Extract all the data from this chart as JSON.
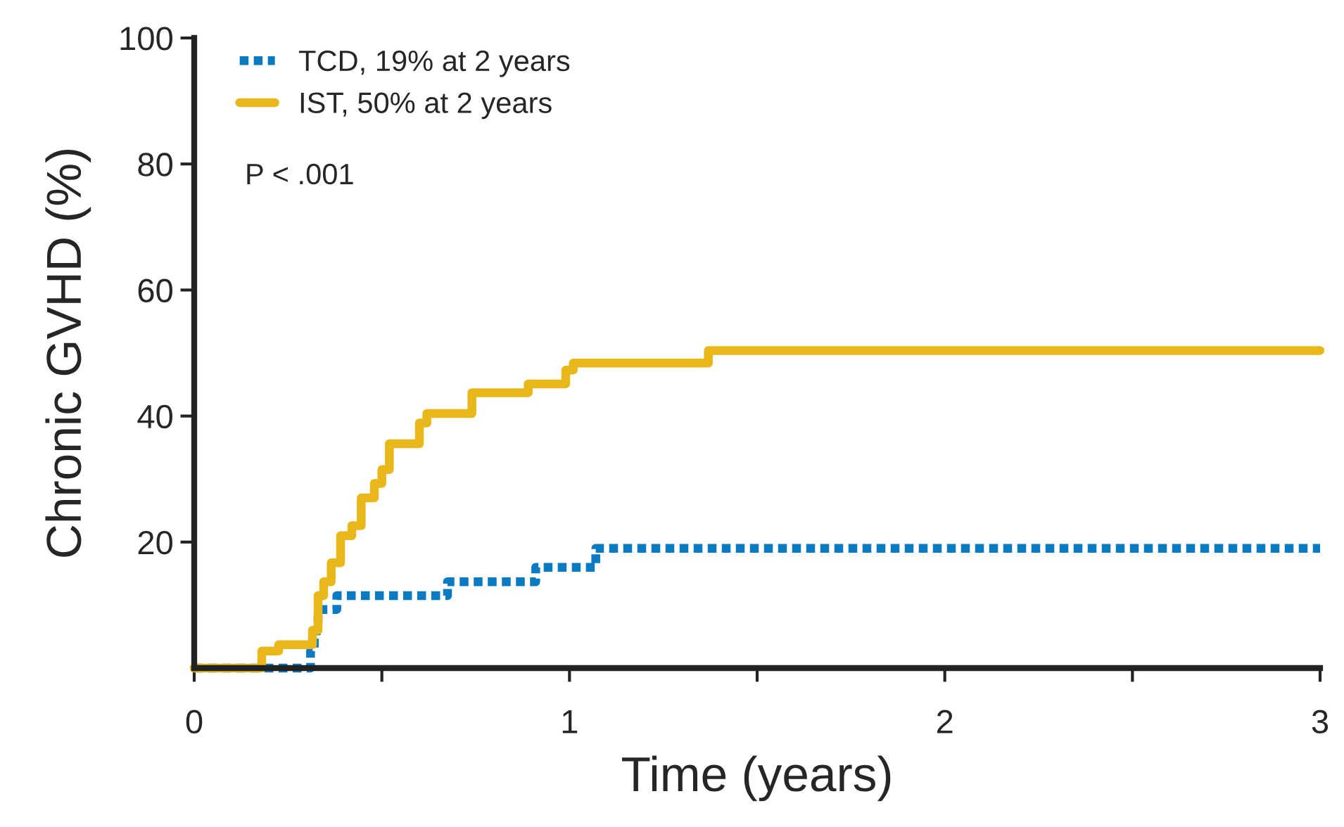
{
  "chart_data": {
    "type": "step",
    "xlabel": "Time (years)",
    "ylabel": "Chronic GVHD (%)",
    "series": [
      {
        "name": "TCD, 19% at 2 years",
        "color": "#0a7bc2",
        "line_style": "dotted",
        "x": [
          0,
          0.31,
          0.32,
          0.325,
          0.33,
          0.38,
          0.675,
          0.91,
          1.07,
          3
        ],
        "values": [
          0,
          2.7,
          4.9,
          7.1,
          9.3,
          11.5,
          13.7,
          16,
          19,
          19
        ]
      },
      {
        "name": "IST, 50% at 2 years",
        "color": "#e8b81a",
        "line_style": "solid",
        "x": [
          0,
          0.18,
          0.225,
          0.315,
          0.33,
          0.345,
          0.365,
          0.39,
          0.42,
          0.445,
          0.48,
          0.5,
          0.52,
          0.6,
          0.62,
          0.74,
          0.89,
          0.99,
          1.01,
          1.37,
          3
        ],
        "values": [
          0,
          2.7,
          3.7,
          6,
          11.5,
          13.7,
          16.7,
          21,
          22.6,
          27,
          29.3,
          31.5,
          35.6,
          38.9,
          40.4,
          43.7,
          45.1,
          47.3,
          48.4,
          50.4,
          50.4
        ]
      }
    ],
    "annotations": [
      "P < .001"
    ],
    "xlim": [
      0,
      3
    ],
    "ylim": [
      0,
      100
    ],
    "xticks": [
      0,
      {
        "value": 0.5,
        "label": null
      },
      1,
      {
        "value": 1.5,
        "label": null
      },
      2,
      {
        "value": 2.5,
        "label": null
      },
      3
    ],
    "yticks": [
      20,
      40,
      60,
      80,
      100
    ],
    "grid": false,
    "legend": "top left",
    "marker": "none"
  }
}
